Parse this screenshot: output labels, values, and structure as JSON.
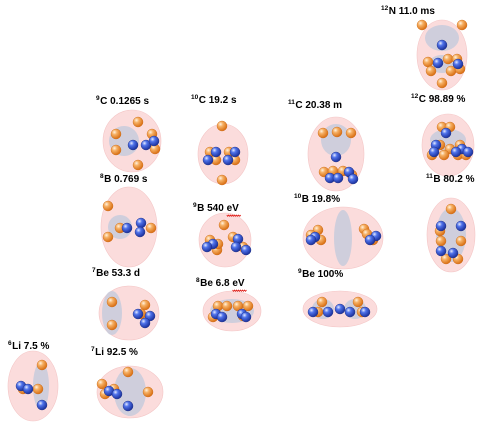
{
  "nuclei": [
    {
      "id": "n12",
      "mass": "12",
      "label": "N 11.0 ms"
    },
    {
      "id": "c9",
      "mass": "9",
      "label": "C 0.1265 s"
    },
    {
      "id": "c10",
      "mass": "10",
      "label": "C 19.2 s"
    },
    {
      "id": "c11",
      "mass": "11",
      "label": "C 20.38 m"
    },
    {
      "id": "c12",
      "mass": "12",
      "label": "C 98.89 %"
    },
    {
      "id": "b8",
      "mass": "8",
      "label": "B 0.769 s"
    },
    {
      "id": "b9",
      "mass": "9",
      "label": "B 540 eV"
    },
    {
      "id": "b10",
      "mass": "10",
      "label": "B 19.8%"
    },
    {
      "id": "b11",
      "mass": "11",
      "label": "B 80.2 %"
    },
    {
      "id": "be7",
      "mass": "7",
      "label": "Be 53.3 d"
    },
    {
      "id": "be8",
      "mass": "8",
      "label": "Be 6.8 eV"
    },
    {
      "id": "be9",
      "mass": "9",
      "label": "Be 100%"
    },
    {
      "id": "li6",
      "mass": "6",
      "label": "Li 7.5 %"
    },
    {
      "id": "li7",
      "mass": "7",
      "label": "Li 92.5 %"
    }
  ],
  "colors": {
    "nucleus_halo": "#fbdcdc",
    "cluster_core": "#c7cbdc",
    "proton": "#f39a3b",
    "neutron": "#3556d4",
    "squiggle": "#e0201a"
  }
}
